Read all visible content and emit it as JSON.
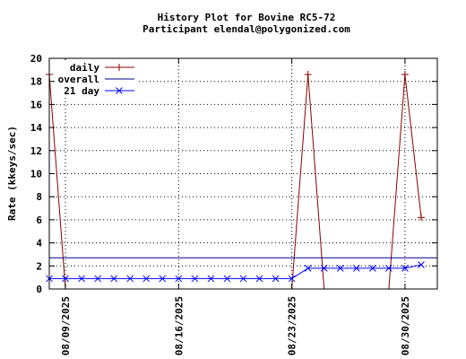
{
  "chart_data": {
    "type": "line",
    "title": "History Plot for Bovine RC5-72",
    "subtitle": "Participant elendal@polygonized.com",
    "ylabel": "Rate (kkeys/sec)",
    "xlabel": "",
    "ylim": [
      0,
      20
    ],
    "yticks": [
      0,
      2,
      4,
      6,
      8,
      10,
      12,
      14,
      16,
      18,
      20
    ],
    "xlim": [
      "2025-08-08",
      "2025-09-01"
    ],
    "xticks": [
      "08/09/2025",
      "08/16/2025",
      "08/23/2025",
      "08/30/2025"
    ],
    "grid": true,
    "legend_position": "top-left",
    "series": [
      {
        "name": "daily",
        "color": "#8b0000",
        "marker": "plus",
        "x": [
          "2025-08-08",
          "2025-08-09",
          "2025-08-10",
          "2025-08-11",
          "2025-08-12",
          "2025-08-13",
          "2025-08-14",
          "2025-08-15",
          "2025-08-16",
          "2025-08-17",
          "2025-08-18",
          "2025-08-19",
          "2025-08-20",
          "2025-08-21",
          "2025-08-22",
          "2025-08-23",
          "2025-08-24",
          "2025-08-25",
          "2025-08-26",
          "2025-08-27",
          "2025-08-28",
          "2025-08-29",
          "2025-08-30",
          "2025-08-31"
        ],
        "values": [
          18.6,
          0,
          0,
          0,
          0,
          0,
          0,
          0,
          0,
          0,
          0,
          0,
          0,
          0,
          0,
          0,
          18.6,
          0,
          0,
          0,
          0,
          0,
          18.6,
          6.2
        ]
      },
      {
        "name": "overall",
        "color": "#00008b",
        "marker": "none",
        "constant": 2.7
      },
      {
        "name": "21 day",
        "color": "#0000ff",
        "marker": "x",
        "x": [
          "2025-08-08",
          "2025-08-09",
          "2025-08-10",
          "2025-08-11",
          "2025-08-12",
          "2025-08-13",
          "2025-08-14",
          "2025-08-15",
          "2025-08-16",
          "2025-08-17",
          "2025-08-18",
          "2025-08-19",
          "2025-08-20",
          "2025-08-21",
          "2025-08-22",
          "2025-08-23",
          "2025-08-24",
          "2025-08-25",
          "2025-08-26",
          "2025-08-27",
          "2025-08-28",
          "2025-08-29",
          "2025-08-30",
          "2025-08-31"
        ],
        "values": [
          0.9,
          0.9,
          0.9,
          0.9,
          0.9,
          0.9,
          0.9,
          0.9,
          0.9,
          0.9,
          0.9,
          0.9,
          0.9,
          0.9,
          0.9,
          0.9,
          1.8,
          1.8,
          1.8,
          1.8,
          1.8,
          1.8,
          1.8,
          2.1
        ]
      }
    ]
  }
}
